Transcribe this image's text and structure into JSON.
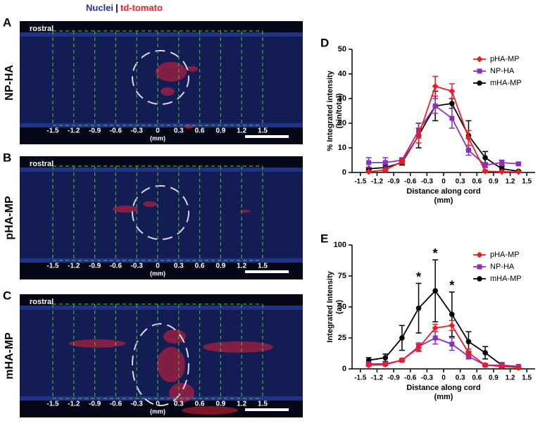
{
  "header": {
    "nuclei": "Nuclei",
    "separator": "|",
    "tdtomato": "td-tomato"
  },
  "panels": [
    {
      "letter": "A",
      "label": "NP-HA",
      "corner": "rostral",
      "ticks": [
        -1.5,
        -1.2,
        -0.9,
        -0.6,
        -0.3,
        0,
        0.3,
        0.6,
        0.9,
        1.2,
        1.5
      ],
      "unit": "(mm)"
    },
    {
      "letter": "B",
      "label": "pHA-MP",
      "corner": "rostral",
      "ticks": [
        -1.5,
        -1.2,
        -0.9,
        -0.6,
        -0.3,
        0,
        0.3,
        0.6,
        0.9,
        1.2,
        1.5
      ],
      "unit": "(mm)"
    },
    {
      "letter": "C",
      "label": "mHA-MP",
      "corner": "rostral",
      "ticks": [
        -1.5,
        -1.2,
        -0.9,
        -0.6,
        -0.3,
        0,
        0.3,
        0.6,
        0.9,
        1.2,
        1.5
      ],
      "unit": "(mm)"
    }
  ],
  "chart_data": [
    {
      "type": "line",
      "panel": "D",
      "ylabel": [
        "% Integrated intensity",
        "(bin/total)"
      ],
      "xlabel": [
        "Distance along cord",
        "(mm)"
      ],
      "x": [
        -1.35,
        -1.05,
        -0.75,
        -0.45,
        -0.15,
        0.15,
        0.45,
        0.75,
        1.05,
        1.35
      ],
      "xlim": [
        -1.65,
        1.65
      ],
      "xticks": [
        -1.5,
        -1.2,
        -0.9,
        -0.6,
        -0.3,
        0,
        0.3,
        0.6,
        0.9,
        1.2,
        1.5
      ],
      "ylim": [
        0,
        50
      ],
      "yticks": [
        0,
        10,
        20,
        30,
        40,
        50
      ],
      "legend": "top-right",
      "series": [
        {
          "name": "pHA-MP",
          "color": "#ee1c25",
          "marker": "diamond",
          "values": [
            0.3,
            1,
            4.5,
            15,
            35,
            33,
            14,
            0.5,
            0.3,
            0.2
          ],
          "errors": [
            0.3,
            0.5,
            1,
            3,
            4,
            3,
            3,
            0.5,
            0.3,
            0.2
          ]
        },
        {
          "name": "NP-HA",
          "color": "#8a2fc0",
          "marker": "square",
          "values": [
            4,
            4,
            5,
            17,
            27,
            22,
            9,
            3,
            4,
            3.5
          ],
          "errors": [
            2,
            2,
            1,
            3,
            3,
            4,
            2,
            1,
            1,
            0.5
          ]
        },
        {
          "name": "mHA-MP",
          "color": "#000000",
          "marker": "circle",
          "values": [
            1.5,
            2,
            4,
            15,
            27,
            28,
            15,
            6,
            1.5,
            0.5
          ],
          "errors": [
            0.5,
            1,
            1,
            5,
            6,
            2,
            6,
            2.5,
            1,
            0.3
          ]
        }
      ]
    },
    {
      "type": "line",
      "panel": "E",
      "ylabel": [
        "Integrated Intensity",
        "(au)"
      ],
      "xlabel": [
        "Distance along cord",
        "(mm)"
      ],
      "x": [
        -1.35,
        -1.05,
        -0.75,
        -0.45,
        -0.15,
        0.15,
        0.45,
        0.75,
        1.05,
        1.35
      ],
      "xlim": [
        -1.65,
        1.65
      ],
      "xticks": [
        -1.5,
        -1.2,
        -0.9,
        -0.6,
        -0.3,
        0,
        0.3,
        0.6,
        0.9,
        1.2,
        1.5
      ],
      "ylim": [
        0,
        100
      ],
      "yticks": [
        0,
        25,
        50,
        75,
        100
      ],
      "legend": "top-right",
      "annotations": [
        "*",
        "*",
        "*"
      ],
      "series": [
        {
          "name": "pHA-MP",
          "color": "#ee1c25",
          "marker": "diamond",
          "values": [
            3,
            3.5,
            7,
            17,
            33,
            35,
            13,
            3,
            2,
            1
          ],
          "errors": [
            1,
            1,
            1,
            3,
            3,
            4,
            3,
            1,
            0.5,
            0.5
          ]
        },
        {
          "name": "NP-HA",
          "color": "#8a2fc0",
          "marker": "square",
          "values": [
            4,
            4,
            7,
            18,
            25,
            20,
            10,
            3,
            3,
            2
          ],
          "errors": [
            1,
            1,
            1,
            3,
            5,
            5,
            2,
            1,
            1,
            0.5
          ]
        },
        {
          "name": "mHA-MP",
          "color": "#000000",
          "marker": "circle",
          "values": [
            7,
            9,
            25,
            49,
            63,
            44,
            22,
            13,
            3,
            1
          ],
          "errors": [
            2,
            3,
            10,
            20,
            25,
            18,
            8,
            5,
            2,
            0.5
          ]
        }
      ]
    }
  ]
}
